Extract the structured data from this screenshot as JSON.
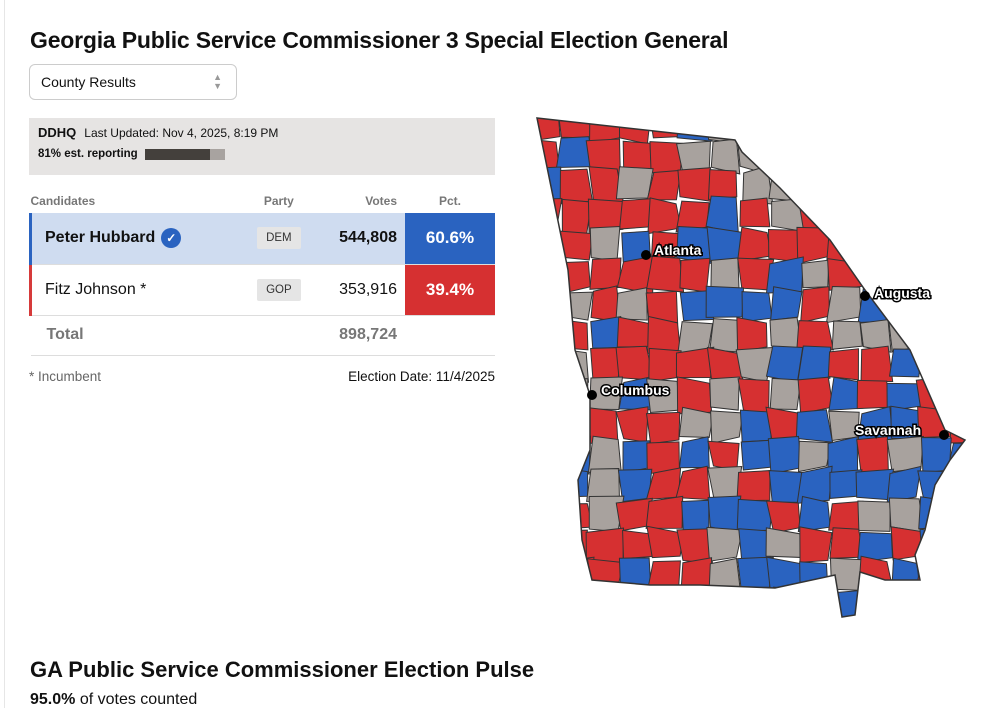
{
  "title": "Georgia Public Service Commissioner 3 Special Election General",
  "view_select": {
    "value": "County Results"
  },
  "status": {
    "logo": "DDHQ",
    "last_updated": "Last Updated: Nov 4, 2025, 8:19 PM",
    "reporting_label": "81% est. reporting",
    "reporting_pct": 81
  },
  "table": {
    "headers": {
      "candidates": "Candidates",
      "party": "Party",
      "votes": "Votes",
      "pct": "Pct."
    },
    "rows": [
      {
        "name": "Peter Hubbard",
        "party": "DEM",
        "votes": "544,808",
        "pct": "60.6%",
        "winner": true
      },
      {
        "name": "Fitz Johnson *",
        "party": "GOP",
        "votes": "353,916",
        "pct": "39.4%"
      }
    ],
    "total_label": "Total",
    "total_votes": "898,724"
  },
  "footer": {
    "incumbent_note": "* Incumbent",
    "election_date": "Election Date: 11/4/2025"
  },
  "map": {
    "colors": {
      "dem": "#2a63c0",
      "gop": "#d63031",
      "none": "#a8a29e"
    },
    "cities": [
      "Atlanta",
      "Augusta",
      "Columbus",
      "Savannah"
    ]
  },
  "pulse": {
    "title": "GA Public Service Commissioner Election Pulse",
    "pct": "95.0%",
    "suffix": "of votes counted"
  }
}
